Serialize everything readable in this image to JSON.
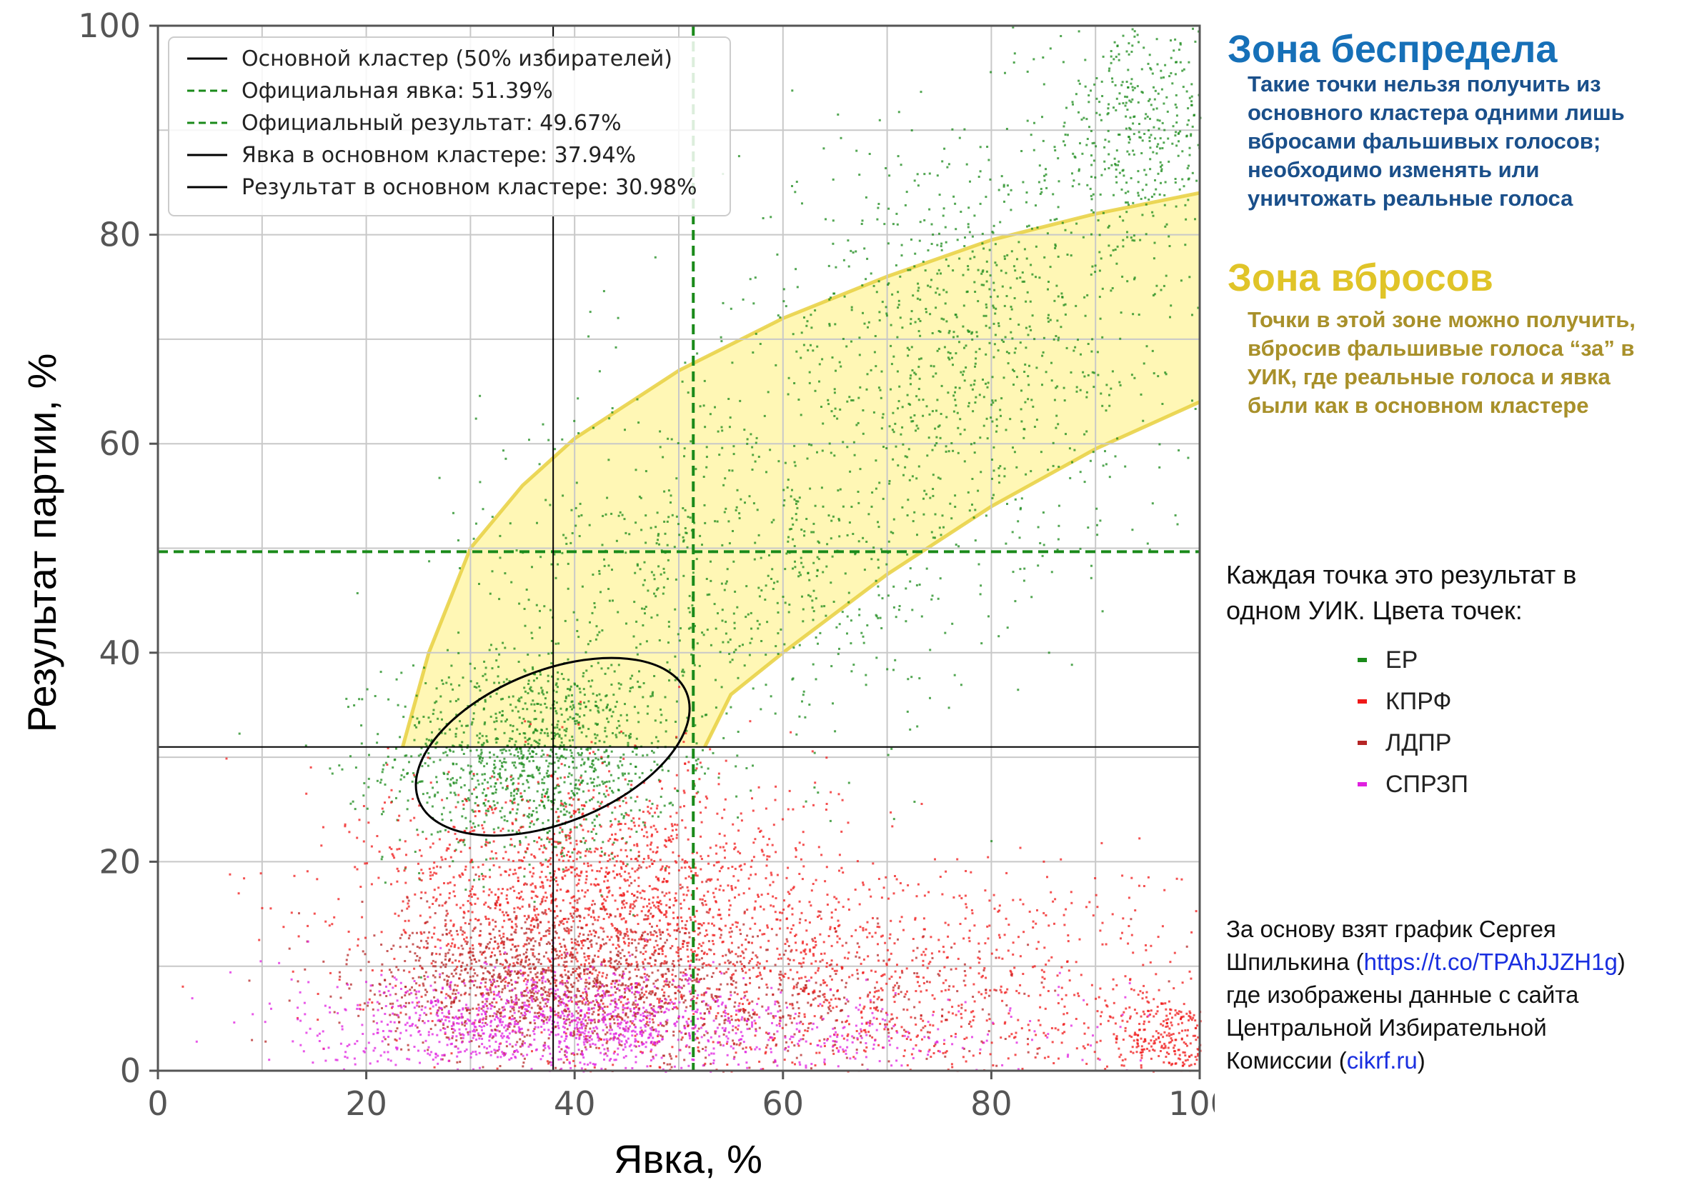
{
  "chart_data": {
    "type": "scatter",
    "xlabel": "Явка, %",
    "ylabel": "Результат партии, %",
    "xlim": [
      0,
      100
    ],
    "ylim": [
      0,
      100
    ],
    "xticks": [
      0,
      20,
      40,
      60,
      80,
      100
    ],
    "yticks": [
      0,
      20,
      40,
      60,
      80,
      100
    ],
    "grid": true,
    "legend_position": "upper-left",
    "legend": [
      {
        "label": "Основной кластер (50% избирателей)",
        "style": "solid",
        "color": "#000000"
      },
      {
        "label": "Официальная явка: 51.39%",
        "style": "dashed",
        "color": "#1a8a1a"
      },
      {
        "label": "Официальный результат: 49.67%",
        "style": "dashed",
        "color": "#1a8a1a"
      },
      {
        "label": "Явка в основном кластере: 37.94%",
        "style": "solid",
        "color": "#000000"
      },
      {
        "label": "Результат в основном кластере: 30.98%",
        "style": "solid",
        "color": "#000000"
      }
    ],
    "official_turnout": 51.39,
    "official_result": 49.67,
    "cluster_turnout": 37.94,
    "cluster_result": 30.98,
    "cluster_ellipse": {
      "center": [
        37.9,
        31.0
      ],
      "x_range": [
        23.0,
        52.8
      ],
      "y_range": [
        20.8,
        41.0
      ],
      "angle_deg": 22
    },
    "stuffing_zone": {
      "upper_boundary": [
        [
          23.5,
          31
        ],
        [
          26,
          40
        ],
        [
          30,
          50
        ],
        [
          35,
          56
        ],
        [
          40,
          60.5
        ],
        [
          50,
          67
        ],
        [
          60,
          72
        ],
        [
          70,
          76
        ],
        [
          80,
          79.5
        ],
        [
          90,
          82
        ],
        [
          100,
          84
        ]
      ],
      "lower_boundary": [
        [
          52.5,
          31
        ],
        [
          55,
          36
        ],
        [
          60,
          40
        ],
        [
          70,
          47.5
        ],
        [
          80,
          54
        ],
        [
          90,
          59.5
        ],
        [
          100,
          64
        ]
      ]
    },
    "series": [
      {
        "name": "ЕР",
        "color": "#1a8a1a",
        "clusters": [
          {
            "center": [
              36,
              30
            ],
            "spread": [
              7,
              5
            ],
            "share": 0.34
          },
          {
            "center": [
              55,
              48
            ],
            "spread": [
              12,
              9
            ],
            "share": 0.2
          },
          {
            "center": [
              78,
              70
            ],
            "spread": [
              11,
              10
            ],
            "share": 0.26
          },
          {
            "center": [
              94,
              90
            ],
            "spread": [
              4,
              6
            ],
            "share": 0.12
          }
        ]
      },
      {
        "name": "КПРФ",
        "color": "#f01818",
        "clusters": [
          {
            "center": [
              42,
              17
            ],
            "spread": [
              11,
              6
            ],
            "share": 0.55
          },
          {
            "center": [
              70,
              8
            ],
            "spread": [
              17,
              6
            ],
            "share": 0.35
          },
          {
            "center": [
              97,
              3
            ],
            "spread": [
              3,
              2.5
            ],
            "share": 0.1
          }
        ]
      },
      {
        "name": "ЛДПР",
        "color": "#b52525",
        "clusters": [
          {
            "center": [
              38,
              8.5
            ],
            "spread": [
              9,
              3.5
            ],
            "share": 0.8
          },
          {
            "center": [
              60,
              6
            ],
            "spread": [
              12,
              3.5
            ],
            "share": 0.2
          }
        ]
      },
      {
        "name": "СПРЗП",
        "color": "#e020e0",
        "clusters": [
          {
            "center": [
              38,
              4.5
            ],
            "spread": [
              11,
              2.5
            ],
            "share": 0.8
          },
          {
            "center": [
              65,
              3
            ],
            "spread": [
              15,
              2.5
            ],
            "share": 0.2
          }
        ]
      }
    ]
  },
  "annotations": {
    "zone_lawless_title": "Зона беспредела",
    "zone_lawless_lines": [
      "Такие точки нельзя получить из",
      "основного кластера одними лишь",
      "вбросами фальшивых голосов;",
      "необходимо изменять или",
      "уничтожать реальные голоса"
    ],
    "zone_stuffing_title": "Зона вбросов",
    "zone_stuffing_lines": [
      "Точки в этой зоне можно получить,",
      "вбросив фальшивые голоса “за” в",
      "УИК, где реальные голоса и явка",
      "были как в основном кластере"
    ],
    "dots_line1": "Каждая точка это результат в",
    "dots_line2": "одном УИК. Цвета точек:",
    "credit_line1": "За основу взят график Сергея",
    "credit_line2_a": "Шпилькина (",
    "credit_line2_link": "https://t.co/TPAhJJZH1g",
    "credit_line2_b": ")",
    "credit_line3": "где изображены данные с сайта",
    "credit_line4": "Центральной Избирательной",
    "credit_line5_a": "Комиссии (",
    "credit_line5_link": "cikrf.ru",
    "credit_line5_b": ")"
  },
  "colors": {
    "zone_fill": "#fff6a8",
    "zone_border": "#e8d040",
    "grid": "#c8c8c8",
    "official_line": "#1a8a1a"
  }
}
